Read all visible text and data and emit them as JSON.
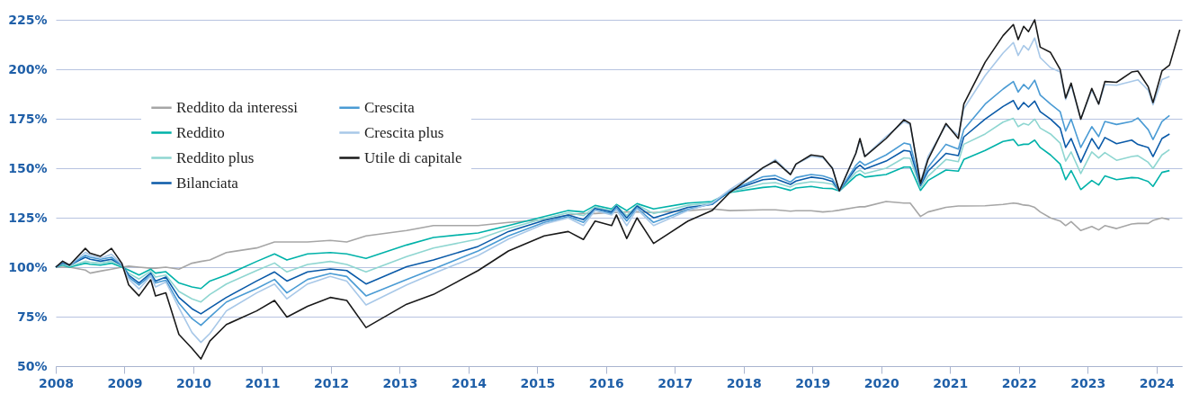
{
  "chart_data": {
    "type": "line",
    "marker": "none",
    "line_style": "solid",
    "grid": "y",
    "legend": "top left",
    "xlim": [
      2008,
      2024.37
    ],
    "xticks": [
      2008,
      2009,
      2010,
      2011,
      2012,
      2013,
      2014,
      2015,
      2016,
      2017,
      2018,
      2019,
      2020,
      2021,
      2022,
      2023,
      2024
    ],
    "ylim": [
      50,
      225
    ],
    "yticks": [
      {
        "value": 50,
        "label": "50%"
      },
      {
        "value": 75,
        "label": "75%"
      },
      {
        "value": 100,
        "label": "100%"
      },
      {
        "value": 125,
        "label": "125%"
      },
      {
        "value": 150,
        "label": "150%"
      },
      {
        "value": 175,
        "label": "175%"
      },
      {
        "value": 200,
        "label": "200%"
      },
      {
        "value": 225,
        "label": "225%"
      }
    ],
    "x": [
      2008.0,
      2008.1,
      2008.2,
      2008.43,
      2008.5,
      2008.65,
      2008.81,
      2008.96,
      2009.06,
      2009.21,
      2009.38,
      2009.45,
      2009.6,
      2009.79,
      2009.98,
      2010.11,
      2010.24,
      2010.48,
      2010.92,
      2011.18,
      2011.36,
      2011.66,
      2011.99,
      2012.23,
      2012.51,
      2013.1,
      2013.49,
      2014.14,
      2014.58,
      2015.1,
      2015.45,
      2015.67,
      2015.84,
      2016.08,
      2016.15,
      2016.3,
      2016.45,
      2016.69,
      2017.19,
      2017.54,
      2017.8,
      2018.28,
      2018.46,
      2018.68,
      2018.76,
      2018.98,
      2019.15,
      2019.29,
      2019.39,
      2019.63,
      2019.69,
      2019.76,
      2020.07,
      2020.33,
      2020.42,
      2020.57,
      2020.68,
      2020.94,
      2021.12,
      2021.2,
      2021.51,
      2021.77,
      2021.92,
      2021.99,
      2022.07,
      2022.14,
      2022.23,
      2022.31,
      2022.46,
      2022.6,
      2022.68,
      2022.76,
      2022.9,
      2023.06,
      2023.16,
      2023.25,
      2023.42,
      2023.64,
      2023.73,
      2023.88,
      2023.95,
      2024.08,
      2024.19,
      2024.34
    ],
    "series": [
      {
        "name": "Reddito da interessi",
        "color": "#a6a6a6",
        "values": [
          100,
          100,
          100,
          98.5,
          97,
          98,
          99,
          100,
          100.5,
          100,
          99.5,
          99.5,
          100,
          99,
          102,
          102.9,
          103.6,
          107.4,
          109.7,
          112.7,
          112.7,
          112.7,
          113.5,
          112.7,
          115.8,
          118.5,
          121,
          121,
          122.6,
          124,
          126.4,
          127.1,
          127.1,
          127.6,
          127.6,
          127.9,
          127.9,
          127.6,
          128.6,
          129.4,
          128.6,
          129,
          129,
          128.3,
          128.5,
          128.5,
          127.9,
          128.3,
          128.8,
          130.2,
          130.5,
          130.5,
          133.2,
          132.4,
          132.4,
          125.6,
          127.9,
          130.2,
          130.9,
          130.9,
          131,
          131.7,
          132.4,
          132.1,
          131.4,
          131.2,
          130.2,
          127.9,
          124.9,
          123.3,
          121,
          123,
          118.5,
          120.6,
          118.8,
          121,
          119.5,
          121.8,
          122.1,
          122.1,
          123.6,
          124.9,
          124,
          null
        ]
      },
      {
        "name": "Reddito",
        "color": "#00b2a9",
        "values": [
          100,
          101,
          100,
          102,
          101.5,
          101,
          102,
          100,
          98.5,
          96,
          99,
          97,
          97.7,
          92,
          90,
          89.2,
          93,
          96,
          102.9,
          106.7,
          103.6,
          106.7,
          107.4,
          106.7,
          104.4,
          111.2,
          115,
          117.3,
          121,
          125.6,
          128.6,
          127.9,
          131.2,
          129.4,
          131.7,
          128.6,
          132.1,
          129.4,
          132.4,
          133.2,
          137.7,
          140.3,
          140.8,
          138.8,
          140,
          140.8,
          139.9,
          139.7,
          138.5,
          146.1,
          147,
          145.5,
          146.8,
          150.6,
          150.6,
          138.8,
          143.8,
          149.1,
          148.5,
          154.4,
          159,
          163.5,
          164.5,
          161.5,
          162.1,
          162.1,
          164.2,
          160.5,
          156.7,
          152.1,
          144.2,
          148.8,
          139.2,
          143.8,
          141.5,
          146.1,
          144.2,
          145.3,
          145.1,
          143.3,
          140.8,
          147.9,
          148.8,
          null
        ]
      },
      {
        "name": "Reddito plus",
        "color": "#8fd6d1",
        "values": [
          100,
          101.5,
          100.5,
          103,
          102.5,
          102,
          103,
          100.5,
          97,
          94,
          98,
          95,
          96,
          87.7,
          84,
          82.4,
          86.2,
          91.5,
          98.3,
          102.1,
          97.6,
          101.4,
          102.9,
          101.4,
          97.6,
          105.3,
          109.7,
          114.2,
          119.5,
          124.5,
          127.5,
          126,
          130.5,
          128.6,
          131.2,
          126,
          131.5,
          127.1,
          131.3,
          132.5,
          138,
          142.3,
          142.7,
          140.5,
          142,
          143.2,
          142.7,
          141.9,
          138.5,
          147.9,
          149,
          147.3,
          150,
          155.2,
          155,
          140,
          146,
          154.4,
          153.3,
          162.1,
          167.3,
          173.3,
          175.2,
          171,
          172.6,
          171.8,
          174.8,
          170.3,
          167.3,
          162.7,
          153.6,
          158.2,
          147.3,
          158.2,
          155.2,
          157.9,
          154,
          155.9,
          156.3,
          153,
          149.9,
          156.7,
          159.4,
          null
        ]
      },
      {
        "name": "Bilanciata",
        "color": "#0a5aa8",
        "values": [
          100,
          102,
          101,
          105,
          104,
          103,
          104,
          101,
          96,
          92,
          97,
          93,
          95,
          84.7,
          79,
          76.4,
          79.4,
          84.7,
          93,
          97.6,
          93,
          97.6,
          99.1,
          98.3,
          91.5,
          100.2,
          103.6,
          110.5,
          118,
          123.6,
          126.4,
          124,
          129.7,
          127.9,
          130.9,
          124.9,
          130.9,
          124.9,
          130.2,
          131.7,
          138.5,
          144.2,
          144.7,
          141.8,
          143.5,
          145.5,
          144.8,
          143.3,
          138.5,
          149.9,
          151.5,
          149.5,
          153.6,
          159,
          158.5,
          141.3,
          148.5,
          157.5,
          156.4,
          165.8,
          174.8,
          181.2,
          184.2,
          179.7,
          183.2,
          180.9,
          183.9,
          178.6,
          174.8,
          170.3,
          160.5,
          165,
          153,
          165,
          159.7,
          165.5,
          162.4,
          164.2,
          162,
          160.5,
          155.9,
          165,
          167.3,
          null
        ]
      },
      {
        "name": "Crescita",
        "color": "#4a9bd4",
        "values": [
          100,
          102.5,
          101,
          106,
          105,
          104,
          105,
          101,
          95,
          91,
          96,
          92,
          93.4,
          81.8,
          74,
          70.6,
          74.8,
          82.4,
          89.2,
          93.8,
          87,
          93.8,
          96.8,
          95.3,
          85.5,
          93.8,
          99.1,
          108.2,
          115.8,
          122.6,
          125.6,
          122.6,
          129,
          127,
          130,
          123.3,
          130,
          122.6,
          129.2,
          132,
          138.8,
          145.7,
          146.3,
          143,
          145.3,
          146.8,
          146.1,
          144.5,
          138.5,
          151.4,
          153.5,
          151.5,
          156.7,
          162.7,
          162,
          142,
          150.5,
          162.1,
          159.7,
          169.5,
          182.4,
          190,
          193.8,
          188.5,
          192.3,
          190,
          194.5,
          187,
          182.4,
          178.6,
          168.8,
          174.8,
          160.5,
          171,
          166,
          173.6,
          172.1,
          173.6,
          175.4,
          169.5,
          164.5,
          173.6,
          176.6,
          null
        ]
      },
      {
        "name": "Crescita plus",
        "color": "#a8c8e8",
        "values": [
          100,
          103,
          101,
          107.5,
          106,
          104.5,
          106.5,
          101.5,
          94,
          89,
          95.5,
          90,
          92.5,
          79.5,
          67,
          62,
          66.5,
          77.9,
          87,
          91.5,
          84,
          91.5,
          95.3,
          93,
          80.9,
          91,
          96.8,
          105.9,
          114.2,
          121.8,
          124.9,
          121,
          128.6,
          126.4,
          129,
          121,
          129.4,
          121,
          128.6,
          132.4,
          139.2,
          149.9,
          154.4,
          147,
          152,
          156,
          155.3,
          150.3,
          138.5,
          157.5,
          164,
          156,
          166,
          173.5,
          172,
          142.8,
          156,
          171.8,
          166.5,
          180.1,
          196.8,
          208.2,
          213.5,
          207,
          212,
          209.7,
          215.8,
          205.9,
          200.8,
          198.6,
          184.7,
          192,
          174.8,
          189.4,
          182.4,
          192.3,
          191.9,
          193.9,
          194.7,
          189.4,
          182.1,
          194.8,
          196.4,
          null
        ]
      },
      {
        "name": "Utile di capitale",
        "color": "#1a1a1a",
        "values": [
          100,
          103,
          101,
          109.5,
          107,
          105.5,
          109.5,
          102,
          91,
          85.5,
          93.6,
          85.5,
          87,
          66,
          59,
          53.6,
          62.7,
          71,
          77.9,
          83.2,
          74.8,
          80.2,
          84.7,
          83.2,
          69.5,
          81.3,
          86.2,
          98.3,
          108.2,
          115.8,
          118,
          114,
          123.3,
          121,
          126.4,
          114.5,
          124.9,
          112,
          123.3,
          128.6,
          137.7,
          150.3,
          153.6,
          146.8,
          152.1,
          156.7,
          155.9,
          149.9,
          138.5,
          157.5,
          165,
          155.9,
          165,
          174.5,
          172.6,
          142.3,
          154.4,
          172.6,
          165,
          182.4,
          203.6,
          217,
          222.6,
          215,
          221.7,
          219,
          225,
          211.2,
          208.5,
          199.9,
          185.5,
          193,
          174.8,
          190.3,
          182.4,
          193.8,
          193.4,
          198.6,
          199.1,
          191.2,
          183.2,
          199.1,
          202.1,
          220
        ]
      }
    ]
  }
}
